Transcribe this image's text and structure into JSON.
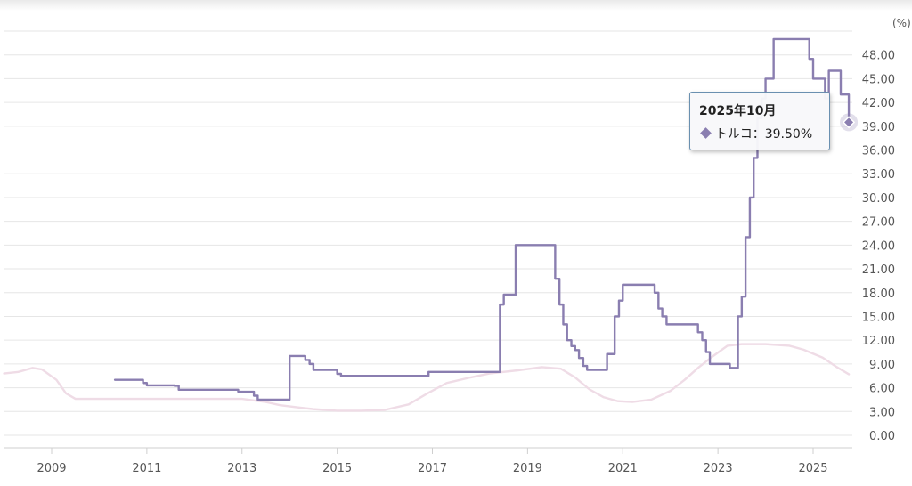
{
  "chart_data": {
    "type": "line",
    "unit_label": "(%)",
    "y_ticks": [
      "0.00",
      "3.00",
      "6.00",
      "9.00",
      "12.00",
      "15.00",
      "18.00",
      "21.00",
      "24.00",
      "27.00",
      "30.00",
      "33.00",
      "36.00",
      "39.00",
      "42.00",
      "45.00",
      "48.00"
    ],
    "ylim": [
      0,
      51
    ],
    "x_ticks": [
      "2009",
      "2011",
      "2013",
      "2015",
      "2017",
      "2019",
      "2021",
      "2023",
      "2025"
    ],
    "xlim": [
      2008.0,
      2025.75
    ],
    "grid": "horizontal",
    "legend": "none",
    "series": [
      {
        "name": "トルコ",
        "color": "#8a7eb0",
        "style": "step",
        "x": [
          2010.33,
          2010.92,
          2011.0,
          2011.58,
          2011.67,
          2012.92,
          2013.25,
          2013.33,
          2014.0,
          2014.33,
          2014.42,
          2014.5,
          2015.0,
          2015.08,
          2016.83,
          2016.92,
          2018.33,
          2018.42,
          2018.5,
          2018.75,
          2019.5,
          2019.58,
          2019.67,
          2019.75,
          2019.83,
          2019.92,
          2020.0,
          2020.08,
          2020.17,
          2020.25,
          2020.33,
          2020.67,
          2020.83,
          2020.92,
          2021.0,
          2021.25,
          2021.67,
          2021.75,
          2021.83,
          2021.92,
          2022.58,
          2022.67,
          2022.75,
          2022.83,
          2023.25,
          2023.42,
          2023.5,
          2023.58,
          2023.67,
          2023.75,
          2023.83,
          2023.92,
          2024.0,
          2024.17,
          2024.92,
          2025.0,
          2025.25,
          2025.33,
          2025.58,
          2025.75
        ],
        "values": [
          7.0,
          6.6,
          6.3,
          6.25,
          5.75,
          5.5,
          5.0,
          4.5,
          10.0,
          9.5,
          9.0,
          8.25,
          7.75,
          7.5,
          7.5,
          8.0,
          8.0,
          16.5,
          17.75,
          24.0,
          24.0,
          19.75,
          16.5,
          14.0,
          12.0,
          11.25,
          10.75,
          9.75,
          8.75,
          8.25,
          8.25,
          10.25,
          15.0,
          17.0,
          19.0,
          19.0,
          18.0,
          16.0,
          15.0,
          14.0,
          13.0,
          12.0,
          10.5,
          9.0,
          8.5,
          15.0,
          17.5,
          25.0,
          30.0,
          35.0,
          40.0,
          42.5,
          45.0,
          50.0,
          47.5,
          45.0,
          42.5,
          46.0,
          43.0,
          39.5
        ]
      },
      {
        "color": "#efdce6",
        "style": "smooth",
        "x": [
          2008.0,
          2008.3,
          2008.6,
          2008.8,
          2009.1,
          2009.3,
          2009.5,
          2010.0,
          2011.0,
          2012.0,
          2013.0,
          2013.5,
          2013.8,
          2014.2,
          2014.5,
          2015.0,
          2015.5,
          2016.0,
          2016.5,
          2016.9,
          2017.3,
          2017.8,
          2018.2,
          2018.8,
          2019.3,
          2019.7,
          2020.0,
          2020.3,
          2020.6,
          2020.9,
          2021.2,
          2021.6,
          2022.0,
          2022.3,
          2022.6,
          2022.9,
          2023.2,
          2023.5,
          2024.0,
          2024.5,
          2024.8,
          2025.2,
          2025.5,
          2025.75
        ],
        "values": [
          7.8,
          8.0,
          8.5,
          8.3,
          7.0,
          5.3,
          4.6,
          4.6,
          4.6,
          4.6,
          4.6,
          4.2,
          3.8,
          3.5,
          3.3,
          3.1,
          3.1,
          3.2,
          3.9,
          5.3,
          6.6,
          7.3,
          7.8,
          8.2,
          8.6,
          8.4,
          7.3,
          5.8,
          4.8,
          4.3,
          4.2,
          4.5,
          5.6,
          7.0,
          8.6,
          10.0,
          11.3,
          11.5,
          11.5,
          11.3,
          10.8,
          9.8,
          8.6,
          7.7
        ]
      }
    ],
    "tooltip": {
      "title": "2025年10月",
      "series_name": "トルコ",
      "value_text": "39.50%",
      "x": 2025.75,
      "value": 39.5
    }
  }
}
